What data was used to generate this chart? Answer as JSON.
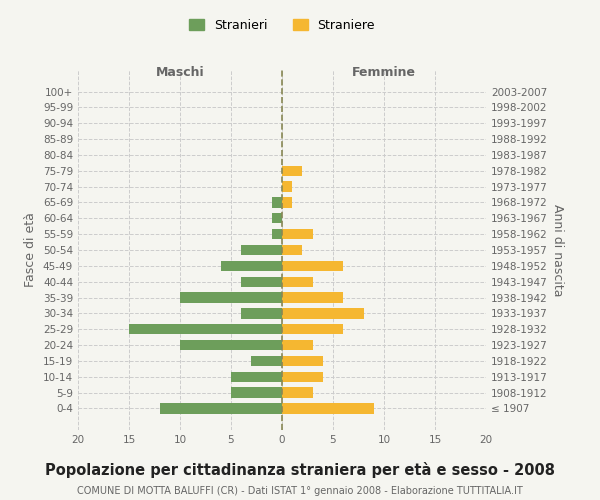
{
  "age_groups": [
    "100+",
    "95-99",
    "90-94",
    "85-89",
    "80-84",
    "75-79",
    "70-74",
    "65-69",
    "60-64",
    "55-59",
    "50-54",
    "45-49",
    "40-44",
    "35-39",
    "30-34",
    "25-29",
    "20-24",
    "15-19",
    "10-14",
    "5-9",
    "0-4"
  ],
  "birth_years": [
    "≤ 1907",
    "1908-1912",
    "1913-1917",
    "1918-1922",
    "1923-1927",
    "1928-1932",
    "1933-1937",
    "1938-1942",
    "1943-1947",
    "1948-1952",
    "1953-1957",
    "1958-1962",
    "1963-1967",
    "1968-1972",
    "1973-1977",
    "1978-1982",
    "1983-1987",
    "1988-1992",
    "1993-1997",
    "1998-2002",
    "2003-2007"
  ],
  "maschi": [
    0,
    0,
    0,
    0,
    0,
    0,
    0,
    1,
    1,
    1,
    4,
    6,
    4,
    10,
    4,
    15,
    10,
    3,
    5,
    5,
    12
  ],
  "femmine": [
    0,
    0,
    0,
    0,
    0,
    2,
    1,
    1,
    0,
    3,
    2,
    6,
    3,
    6,
    8,
    6,
    3,
    4,
    4,
    3,
    9
  ],
  "color_maschi": "#6d9e5b",
  "color_femmine": "#f5b731",
  "color_grid": "#cccccc",
  "color_dashed": "#888855",
  "background_color": "#f5f5f0",
  "title": "Popolazione per cittadinanza straniera per età e sesso - 2008",
  "subtitle": "COMUNE DI MOTTA BALUFFI (CR) - Dati ISTAT 1° gennaio 2008 - Elaborazione TUTTITALIA.IT",
  "xlabel_left": "Maschi",
  "xlabel_right": "Femmine",
  "ylabel_left": "Fasce di età",
  "ylabel_right": "Anni di nascita",
  "legend_maschi": "Stranieri",
  "legend_femmine": "Straniere",
  "xlim": 20,
  "title_fontsize": 10.5,
  "subtitle_fontsize": 7,
  "label_fontsize": 9,
  "tick_fontsize": 7.5
}
